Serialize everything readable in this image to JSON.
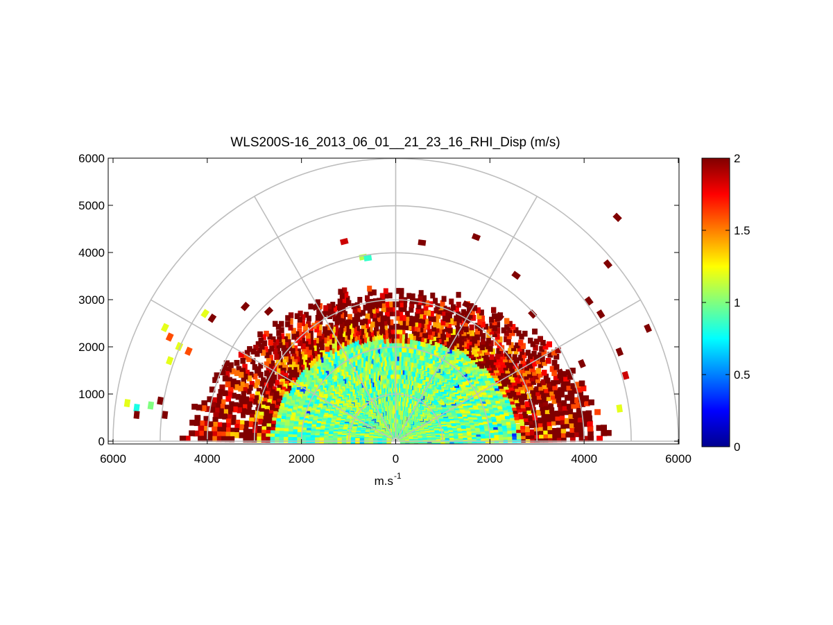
{
  "chart_data": {
    "type": "heatmap",
    "subtype": "polar RHI scan (range-height indicator)",
    "title": "WLS200S-16_2013_06_01__21_23_16_RHI_Disp (m/s)",
    "xlabel": "m.s",
    "xlabel_superscript": "-1",
    "ylabel": "",
    "xlim": [
      -6000,
      6000
    ],
    "ylim": [
      0,
      6000
    ],
    "x_tick_values": [
      -6000,
      -4000,
      -2000,
      0,
      2000,
      4000,
      6000
    ],
    "x_tick_labels": [
      "6000",
      "4000",
      "2000",
      "0",
      "2000",
      "4000",
      "6000"
    ],
    "y_tick_values": [
      0,
      1000,
      2000,
      3000,
      4000,
      5000,
      6000
    ],
    "y_tick_labels": [
      "0",
      "1000",
      "2000",
      "3000",
      "4000",
      "5000",
      "6000"
    ],
    "polar_grid": {
      "range_rings_m": [
        1000,
        2000,
        3000,
        4000,
        5000,
        6000
      ],
      "elevation_spokes_deg": [
        0,
        30,
        60,
        90,
        120,
        150,
        180
      ]
    },
    "colorbar": {
      "colormap": "jet",
      "limits": [
        0,
        2
      ],
      "tick_values": [
        0,
        0.5,
        1,
        1.5,
        2
      ],
      "tick_labels": [
        "0",
        "0.5",
        "1",
        "1.5",
        "2"
      ]
    },
    "field_summary": {
      "dense_region": {
        "max_range_m": [
          2100,
          3000
        ],
        "elevation_deg": [
          0,
          180
        ],
        "typical_value": 1.0
      },
      "edge_band": {
        "range_m": [
          2000,
          4300
        ],
        "typical_value": 2.0
      },
      "max_range_m": 6000
    },
    "sparse_points": [
      {
        "x": 4700,
        "y": 4750,
        "v": 2.0
      },
      {
        "x": 1700,
        "y": 4330,
        "v": 2.0
      },
      {
        "x": 550,
        "y": 4210,
        "v": 2.0
      },
      {
        "x": -1100,
        "y": 4230,
        "v": 1.85
      },
      {
        "x": -700,
        "y": 3900,
        "v": 1.1
      },
      {
        "x": -600,
        "y": 3880,
        "v": 0.85
      },
      {
        "x": 4500,
        "y": 3760,
        "v": 2.0
      },
      {
        "x": 2550,
        "y": 3520,
        "v": 2.0
      },
      {
        "x": 4100,
        "y": 2980,
        "v": 2.0
      },
      {
        "x": 4350,
        "y": 2700,
        "v": 2.0
      },
      {
        "x": 5350,
        "y": 2400,
        "v": 2.0
      },
      {
        "x": 4750,
        "y": 1900,
        "v": 2.0
      },
      {
        "x": 4880,
        "y": 1400,
        "v": 1.85
      },
      {
        "x": 4750,
        "y": 700,
        "v": 1.2
      },
      {
        "x": 1500,
        "y": 2900,
        "v": 2.0
      },
      {
        "x": 2200,
        "y": 2650,
        "v": 2.0
      },
      {
        "x": 2900,
        "y": 2700,
        "v": 2.0
      },
      {
        "x": 1500,
        "y": 2580,
        "v": 2.0
      },
      {
        "x": -1700,
        "y": 2850,
        "v": 2.0
      },
      {
        "x": -2700,
        "y": 2750,
        "v": 2.0
      },
      {
        "x": -3200,
        "y": 2850,
        "v": 2.0
      },
      {
        "x": -4050,
        "y": 2700,
        "v": 1.2
      },
      {
        "x": -3900,
        "y": 2600,
        "v": 2.0
      },
      {
        "x": -4900,
        "y": 2400,
        "v": 1.2
      },
      {
        "x": -4800,
        "y": 2200,
        "v": 1.6
      },
      {
        "x": -4600,
        "y": 2000,
        "v": 1.2
      },
      {
        "x": -4400,
        "y": 1900,
        "v": 1.6
      },
      {
        "x": -4800,
        "y": 1700,
        "v": 1.2
      },
      {
        "x": -5700,
        "y": 800,
        "v": 1.2
      },
      {
        "x": -5500,
        "y": 700,
        "v": 0.8
      },
      {
        "x": -5200,
        "y": 750,
        "v": 1.0
      },
      {
        "x": -5500,
        "y": 550,
        "v": 2.0
      },
      {
        "x": -4900,
        "y": 550,
        "v": 2.0
      },
      {
        "x": -5000,
        "y": 850,
        "v": 2.0
      },
      {
        "x": 3500,
        "y": 1450,
        "v": 2.0
      },
      {
        "x": 3950,
        "y": 1650,
        "v": 2.0
      }
    ]
  }
}
